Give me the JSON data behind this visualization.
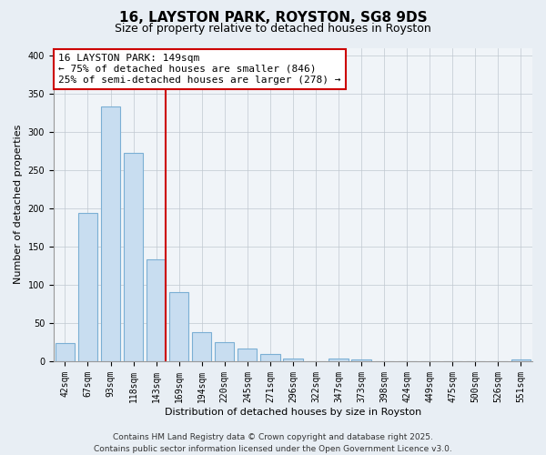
{
  "title": "16, LAYSTON PARK, ROYSTON, SG8 9DS",
  "subtitle": "Size of property relative to detached houses in Royston",
  "xlabel": "Distribution of detached houses by size in Royston",
  "ylabel": "Number of detached properties",
  "categories": [
    "42sqm",
    "67sqm",
    "93sqm",
    "118sqm",
    "143sqm",
    "169sqm",
    "194sqm",
    "220sqm",
    "245sqm",
    "271sqm",
    "296sqm",
    "322sqm",
    "347sqm",
    "373sqm",
    "398sqm",
    "424sqm",
    "449sqm",
    "475sqm",
    "500sqm",
    "526sqm",
    "551sqm"
  ],
  "values": [
    24,
    194,
    333,
    272,
    133,
    90,
    38,
    25,
    17,
    9,
    3,
    0,
    3,
    2,
    0,
    0,
    0,
    0,
    0,
    0,
    2
  ],
  "bar_color": "#c8ddf0",
  "bar_edge_color": "#7bafd4",
  "vline_x_index": 4,
  "vline_color": "#cc0000",
  "annotation_line1": "16 LAYSTON PARK: 149sqm",
  "annotation_line2": "← 75% of detached houses are smaller (846)",
  "annotation_line3": "25% of semi-detached houses are larger (278) →",
  "annotation_box_color": "#ffffff",
  "annotation_box_edge": "#cc0000",
  "ylim": [
    0,
    410
  ],
  "yticks": [
    0,
    50,
    100,
    150,
    200,
    250,
    300,
    350,
    400
  ],
  "footer_line1": "Contains HM Land Registry data © Crown copyright and database right 2025.",
  "footer_line2": "Contains public sector information licensed under the Open Government Licence v3.0.",
  "bg_color": "#e8eef4",
  "plot_bg_color": "#f0f4f8",
  "title_fontsize": 11,
  "subtitle_fontsize": 9,
  "axis_label_fontsize": 8,
  "tick_fontsize": 7,
  "annotation_fontsize": 8,
  "footer_fontsize": 6.5
}
